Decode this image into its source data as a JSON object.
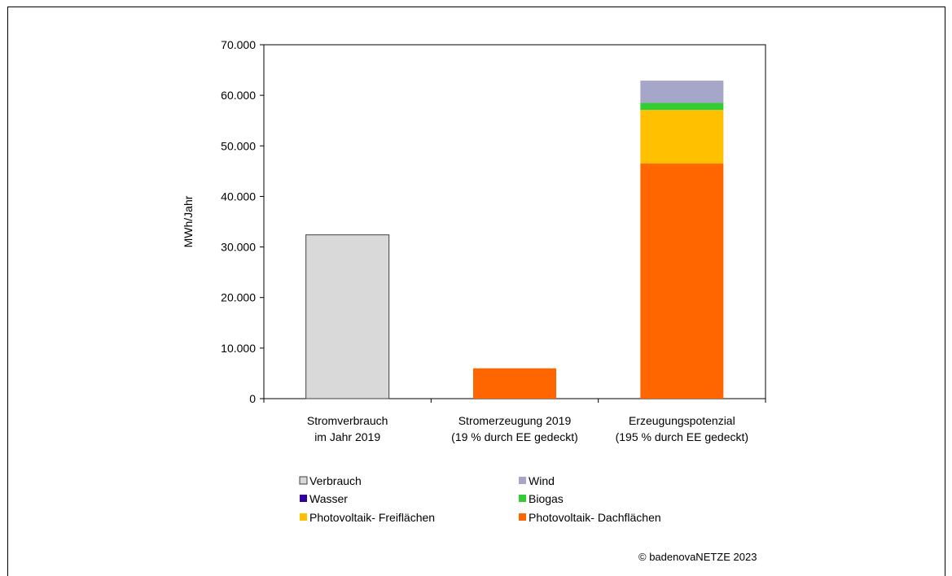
{
  "chart_data": {
    "type": "bar",
    "stacked": true,
    "ylabel": "MWh/Jahr",
    "ylim": [
      0,
      70000
    ],
    "y_ticks": [
      0,
      10000,
      20000,
      30000,
      40000,
      50000,
      60000,
      70000
    ],
    "y_tick_labels": [
      "0",
      "10.000",
      "20.000",
      "30.000",
      "40.000",
      "50.000",
      "60.000",
      "70.000"
    ],
    "categories": [
      [
        "Stromverbrauch",
        "im Jahr 2019"
      ],
      [
        "Stromerzeugung 2019",
        "(19 % durch EE gedeckt)"
      ],
      [
        "Erzeugungspotenzial",
        "(195 % durch EE gedeckt)"
      ]
    ],
    "series": [
      {
        "name": "Verbrauch",
        "color": "#d9d9d9",
        "values": [
          32400,
          0,
          0
        ]
      },
      {
        "name": "Photovoltaik- Dachflächen",
        "color": "#ff6600",
        "values": [
          0,
          6000,
          46500
        ]
      },
      {
        "name": "Photovoltaik- Freiflächen",
        "color": "#ffc000",
        "values": [
          0,
          0,
          10600
        ]
      },
      {
        "name": "Wasser",
        "color": "#330099",
        "values": [
          0,
          0,
          0
        ]
      },
      {
        "name": "Biogas",
        "color": "#33cc33",
        "values": [
          0,
          0,
          1400
        ]
      },
      {
        "name": "Wind",
        "color": "#a6a6c8",
        "values": [
          0,
          0,
          4400
        ]
      }
    ],
    "legend": [
      {
        "label": "Verbrauch",
        "color": "#d9d9d9"
      },
      {
        "label": "Wind",
        "color": "#a6a6c8"
      },
      {
        "label": "Wasser",
        "color": "#330099"
      },
      {
        "label": "Biogas",
        "color": "#33cc33"
      },
      {
        "label": "Photovoltaik- Freiflächen",
        "color": "#ffc000"
      },
      {
        "label": "Photovoltaik- Dachflächen",
        "color": "#ff6600"
      }
    ],
    "legend_placement": "bottom",
    "grid": false
  },
  "footer": {
    "copyright": "© badenovaNETZE 2023"
  }
}
